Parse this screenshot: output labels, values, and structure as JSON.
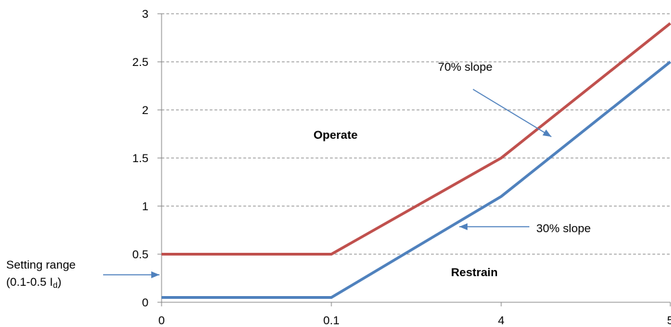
{
  "chart_data": {
    "type": "line",
    "title": "",
    "xlabel": "",
    "ylabel": "",
    "x_categories": [
      "0",
      "0.1",
      "4",
      "5"
    ],
    "ylim": [
      0,
      3
    ],
    "y_ticks": [
      "0",
      "0.5",
      "1",
      "1.5",
      "2",
      "2.5",
      "3"
    ],
    "grid": "horizontal-dashed",
    "series": [
      {
        "color": "#C0504D",
        "points": [
          [
            "0",
            0.5
          ],
          [
            "0.1",
            0.5
          ],
          [
            "4",
            1.5
          ],
          [
            "5",
            2.9
          ]
        ]
      },
      {
        "color": "#4F81BD",
        "points": [
          [
            "0",
            0.05
          ],
          [
            "0.1",
            0.05
          ],
          [
            "4",
            1.1
          ],
          [
            "5",
            2.5
          ]
        ]
      }
    ],
    "annotations": {
      "operate": "Operate",
      "restrain": "Restrain",
      "slope70": "70% slope",
      "slope30": "30% slope",
      "setting_line1": "Setting range",
      "setting_line2_prefix": "(0.1-0.5 I",
      "setting_line2_sub": "d",
      "setting_line2_suffix": ")"
    },
    "arrow_color": "#4F81BD"
  }
}
